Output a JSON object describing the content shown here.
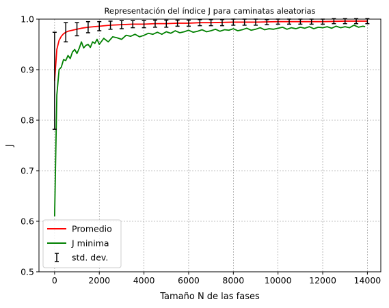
{
  "chart_data": {
    "type": "line",
    "title": "Representación del índice J para caminatas aleatorias",
    "xlabel": "Tamaño N de las fases",
    "ylabel": "J",
    "xlim": [
      -700,
      14600
    ],
    "ylim": [
      0.5,
      1.0
    ],
    "xticks": [
      0,
      2000,
      4000,
      6000,
      8000,
      10000,
      12000,
      14000
    ],
    "xtick_labels": [
      "0",
      "2000",
      "4000",
      "6000",
      "8000",
      "10000",
      "12000",
      "14000"
    ],
    "yticks": [
      0.5,
      0.6,
      0.7,
      0.8,
      0.9,
      1.0
    ],
    "ytick_labels": [
      "0.5",
      "0.6",
      "0.7",
      "0.8",
      "0.9",
      "1.0"
    ],
    "grid": true,
    "legend_position": "lower-left",
    "series": [
      {
        "name": "Promedio",
        "color": "#ff0000",
        "x": [
          0,
          100,
          200,
          300,
          400,
          500,
          600,
          800,
          1000,
          1200,
          1500,
          2000,
          2500,
          3000,
          3500,
          4000,
          4500,
          5000,
          5500,
          6000,
          6500,
          7000,
          8000,
          9000,
          10000,
          11000,
          12000,
          13000,
          14000
        ],
        "y": [
          0.878,
          0.94,
          0.958,
          0.966,
          0.971,
          0.974,
          0.976,
          0.978,
          0.98,
          0.982,
          0.984,
          0.986,
          0.988,
          0.989,
          0.99,
          0.99,
          0.991,
          0.991,
          0.992,
          0.992,
          0.993,
          0.993,
          0.994,
          0.994,
          0.995,
          0.995,
          0.995,
          0.996,
          0.996
        ]
      },
      {
        "name": "J minima",
        "color": "#008000",
        "x": [
          0,
          100,
          200,
          300,
          400,
          500,
          600,
          700,
          800,
          900,
          1000,
          1100,
          1200,
          1300,
          1400,
          1500,
          1600,
          1700,
          1800,
          1900,
          2000,
          2200,
          2400,
          2600,
          2800,
          3000,
          3200,
          3400,
          3600,
          3800,
          4000,
          4200,
          4400,
          4600,
          4800,
          5000,
          5200,
          5400,
          5600,
          5800,
          6000,
          6200,
          6400,
          6600,
          6800,
          7000,
          7200,
          7400,
          7600,
          7800,
          8000,
          8200,
          8400,
          8600,
          8800,
          9000,
          9200,
          9400,
          9600,
          9800,
          10000,
          10200,
          10400,
          10600,
          10800,
          11000,
          11200,
          11400,
          11600,
          11800,
          12000,
          12200,
          12400,
          12600,
          12800,
          13000,
          13200,
          13400,
          13600,
          13800,
          13900
        ],
        "y": [
          0.61,
          0.85,
          0.9,
          0.905,
          0.92,
          0.918,
          0.928,
          0.922,
          0.935,
          0.94,
          0.932,
          0.942,
          0.955,
          0.943,
          0.948,
          0.95,
          0.944,
          0.955,
          0.952,
          0.96,
          0.95,
          0.962,
          0.955,
          0.965,
          0.963,
          0.96,
          0.968,
          0.966,
          0.97,
          0.965,
          0.968,
          0.972,
          0.97,
          0.974,
          0.97,
          0.975,
          0.972,
          0.977,
          0.973,
          0.975,
          0.978,
          0.974,
          0.976,
          0.979,
          0.975,
          0.977,
          0.98,
          0.976,
          0.979,
          0.978,
          0.981,
          0.977,
          0.979,
          0.982,
          0.978,
          0.98,
          0.983,
          0.979,
          0.981,
          0.98,
          0.982,
          0.984,
          0.98,
          0.983,
          0.981,
          0.984,
          0.982,
          0.985,
          0.981,
          0.984,
          0.983,
          0.985,
          0.982,
          0.986,
          0.983,
          0.985,
          0.983,
          0.988,
          0.984,
          0.986,
          0.985
        ]
      }
    ],
    "errorbars": {
      "name": "std. dev.",
      "color": "#000000",
      "x": [
        0,
        500,
        1000,
        1500,
        2000,
        2500,
        3000,
        3500,
        4000,
        4500,
        5000,
        5500,
        6000,
        6500,
        7000,
        7500,
        8000,
        8500,
        9000,
        9500,
        10000,
        10500,
        11000,
        11500,
        12000,
        12500,
        13000,
        13500,
        14000
      ],
      "y": [
        0.878,
        0.974,
        0.98,
        0.984,
        0.986,
        0.988,
        0.989,
        0.99,
        0.99,
        0.991,
        0.991,
        0.992,
        0.992,
        0.993,
        0.993,
        0.993,
        0.994,
        0.994,
        0.994,
        0.994,
        0.995,
        0.995,
        0.995,
        0.995,
        0.995,
        0.996,
        0.996,
        0.996,
        0.996
      ],
      "err": [
        0.096,
        0.019,
        0.013,
        0.011,
        0.009,
        0.008,
        0.008,
        0.007,
        0.007,
        0.007,
        0.007,
        0.006,
        0.006,
        0.006,
        0.006,
        0.006,
        0.006,
        0.006,
        0.006,
        0.005,
        0.005,
        0.005,
        0.005,
        0.005,
        0.005,
        0.005,
        0.005,
        0.005,
        0.005
      ]
    }
  }
}
